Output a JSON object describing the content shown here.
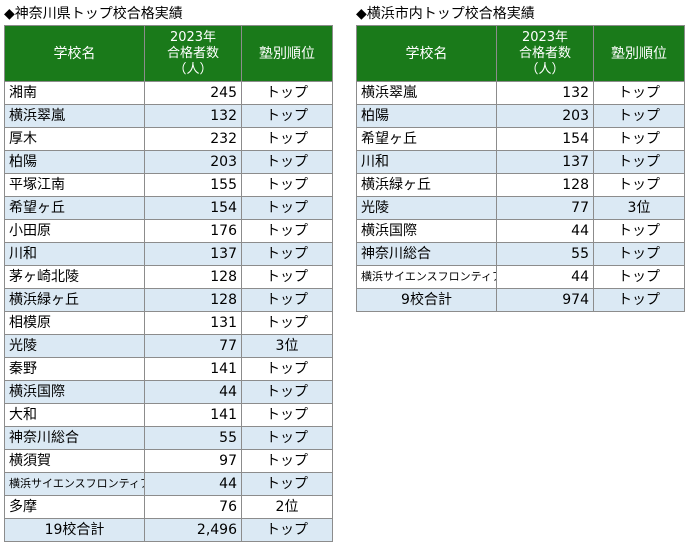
{
  "left": {
    "title": "◆神奈川県トップ校合格実績",
    "headers": {
      "school": "学校名",
      "count_l1": "2023年",
      "count_l2": "合格者数",
      "count_l3": "（人）",
      "rank": "塾別順位"
    },
    "rows": [
      {
        "name": "湘南",
        "count": "245",
        "rank": "トップ"
      },
      {
        "name": "横浜翠嵐",
        "count": "132",
        "rank": "トップ"
      },
      {
        "name": "厚木",
        "count": "232",
        "rank": "トップ"
      },
      {
        "name": "柏陽",
        "count": "203",
        "rank": "トップ"
      },
      {
        "name": "平塚江南",
        "count": "155",
        "rank": "トップ"
      },
      {
        "name": "希望ヶ丘",
        "count": "154",
        "rank": "トップ"
      },
      {
        "name": "小田原",
        "count": "176",
        "rank": "トップ"
      },
      {
        "name": "川和",
        "count": "137",
        "rank": "トップ"
      },
      {
        "name": "茅ヶ崎北陵",
        "count": "128",
        "rank": "トップ"
      },
      {
        "name": "横浜緑ヶ丘",
        "count": "128",
        "rank": "トップ"
      },
      {
        "name": "相模原",
        "count": "131",
        "rank": "トップ"
      },
      {
        "name": "光陵",
        "count": "77",
        "rank": "3位"
      },
      {
        "name": "秦野",
        "count": "141",
        "rank": "トップ"
      },
      {
        "name": "横浜国際",
        "count": "44",
        "rank": "トップ"
      },
      {
        "name": "大和",
        "count": "141",
        "rank": "トップ"
      },
      {
        "name": "神奈川総合",
        "count": "55",
        "rank": "トップ"
      },
      {
        "name": "横須賀",
        "count": "97",
        "rank": "トップ"
      },
      {
        "name": "横浜サイエンスフロンティア",
        "count": "44",
        "rank": "トップ"
      },
      {
        "name": "多摩",
        "count": "76",
        "rank": "2位"
      }
    ],
    "total": {
      "label": "19校合計",
      "count": "2,496",
      "rank": "トップ"
    }
  },
  "right": {
    "title": "◆横浜市内トップ校合格実績",
    "headers": {
      "school": "学校名",
      "count_l1": "2023年",
      "count_l2": "合格者数",
      "count_l3": "（人）",
      "rank": "塾別順位"
    },
    "rows": [
      {
        "name": "横浜翠嵐",
        "count": "132",
        "rank": "トップ"
      },
      {
        "name": "柏陽",
        "count": "203",
        "rank": "トップ"
      },
      {
        "name": "希望ヶ丘",
        "count": "154",
        "rank": "トップ"
      },
      {
        "name": "川和",
        "count": "137",
        "rank": "トップ"
      },
      {
        "name": "横浜緑ヶ丘",
        "count": "128",
        "rank": "トップ"
      },
      {
        "name": "光陵",
        "count": "77",
        "rank": "3位"
      },
      {
        "name": "横浜国際",
        "count": "44",
        "rank": "トップ"
      },
      {
        "name": "神奈川総合",
        "count": "55",
        "rank": "トップ"
      },
      {
        "name": "横浜サイエンスフロンティア",
        "count": "44",
        "rank": "トップ"
      }
    ],
    "total": {
      "label": "9校合計",
      "count": "974",
      "rank": "トップ"
    }
  }
}
